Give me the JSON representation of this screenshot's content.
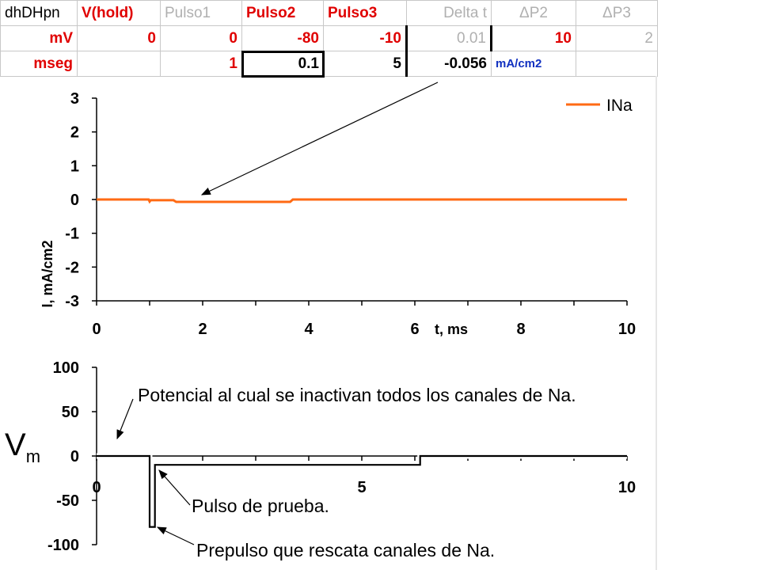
{
  "spreadsheet": {
    "headers": [
      "dhDHpn",
      "V(hold)",
      "Pulso1",
      "Pulso2",
      "Pulso3",
      "Delta t",
      "ΔP2",
      "ΔP3"
    ],
    "row_mv": [
      "mV",
      "0",
      "0",
      "-80",
      "-10",
      "0.01",
      "10",
      "2"
    ],
    "row_mseg": [
      "mseg",
      "",
      "1",
      "0.1",
      "5",
      "-0.056",
      "mA/cm2",
      ""
    ]
  },
  "colors": {
    "ina_trace": "#ff6a13",
    "red_text": "#e00000",
    "gray_text": "#b0b0b0",
    "blue_text": "#1030c0",
    "vm_trace": "#000000"
  },
  "chart_data": [
    {
      "type": "line",
      "title": "",
      "xlabel": "t, ms",
      "ylabel": "I, mA/cm2",
      "xlim": [
        0,
        10
      ],
      "ylim": [
        -3,
        3
      ],
      "x_ticks": [
        0,
        2,
        4,
        6,
        8,
        10
      ],
      "y_ticks": [
        -3,
        -2,
        -1,
        0,
        1,
        2,
        3
      ],
      "legend": {
        "placement": "top-right",
        "entries": [
          "INa"
        ]
      },
      "series": [
        {
          "name": "INa",
          "x": [
            0,
            0.98,
            1.0,
            1.02,
            1.1,
            1.45,
            1.5,
            3.65,
            3.7,
            10
          ],
          "y": [
            0,
            0,
            -0.06,
            -0.02,
            -0.02,
            -0.02,
            -0.07,
            -0.07,
            0,
            0
          ]
        }
      ],
      "grid": false
    },
    {
      "type": "line",
      "title": "",
      "xlabel": "",
      "ylabel": "",
      "vertical_label": {
        "main": "V",
        "sub": "m"
      },
      "xlim": [
        0,
        10
      ],
      "ylim": [
        -100,
        100
      ],
      "x_ticks": [
        0,
        5,
        10
      ],
      "y_ticks": [
        -100,
        -50,
        0,
        50,
        100
      ],
      "series": [
        {
          "x": [
            0,
            1.0,
            1.0,
            1.1,
            1.1,
            6.1,
            6.1,
            10
          ],
          "y": [
            0,
            0,
            -80,
            -80,
            -10,
            -10,
            0,
            0
          ]
        }
      ],
      "grid": false
    }
  ],
  "annotations": {
    "inactivation": "Potencial al cual se inactivan todos los canales de Na.",
    "test_pulse": "Pulso de prueba.",
    "prepulse": "Prepulso que rescata canales de Na."
  }
}
